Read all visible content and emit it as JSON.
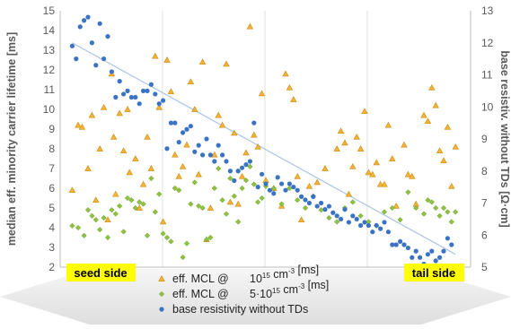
{
  "chart_data": {
    "type": "scatter",
    "title": "",
    "ylabel_left": "median eff. minority carrier lifetime [ms]",
    "ylabel_right": "base resistiv. without TDs [Ω·cm]",
    "ylim_left": [
      2,
      15
    ],
    "ylim_right": [
      5,
      13
    ],
    "yticks_left": [
      "2",
      "3",
      "4",
      "5",
      "6",
      "7",
      "8",
      "9",
      "10",
      "11",
      "12",
      "13",
      "14",
      "15"
    ],
    "yticks_right": [
      "5",
      "6",
      "7",
      "8",
      "9",
      "10",
      "11",
      "12",
      "13"
    ],
    "x_range": [
      0,
      100
    ],
    "x_label_left": "seed side",
    "x_label_right": "tail side",
    "grid": "vertical",
    "legend_position": "bottom",
    "legend": [
      {
        "prefix": "eff. MCL @",
        "rest": "10",
        "sup": "15",
        "after": " cm",
        "sup2": "-3",
        "tail": " [ms]"
      },
      {
        "prefix": "eff. MCL @",
        "rest": "5·10",
        "sup": "15",
        "after": " cm",
        "sup2": "-3",
        "tail": " [ms]"
      },
      {
        "prefix": "base resistivity without TDs",
        "rest": "",
        "sup": "",
        "after": "",
        "sup2": "",
        "tail": ""
      }
    ],
    "colors": {
      "series1": "#f5b335",
      "series2": "#8ec23f",
      "series3": "#3a72c4",
      "trend": "#aac4e6",
      "tag_bg": "#ffff00"
    },
    "series": [
      {
        "axis": "left",
        "marker": "triangle",
        "points": [
          [
            1,
            5.9
          ],
          [
            2.5,
            9.2
          ],
          [
            3.5,
            9.1
          ],
          [
            5,
            7.0
          ],
          [
            6,
            9.7
          ],
          [
            7,
            5.4
          ],
          [
            8,
            8.0
          ],
          [
            9,
            10.1
          ],
          [
            10,
            4.4
          ],
          [
            11,
            11.8
          ],
          [
            11.5,
            8.6
          ],
          [
            12,
            5.7
          ],
          [
            13,
            9.8
          ],
          [
            14,
            7.9
          ],
          [
            15,
            10.0
          ],
          [
            15.5,
            6.8
          ],
          [
            17,
            7.5
          ],
          [
            18,
            5.0
          ],
          [
            19,
            6.2
          ],
          [
            20,
            8.6
          ],
          [
            21,
            7.0
          ],
          [
            22,
            12.7
          ],
          [
            23,
            10.1
          ],
          [
            24,
            4.3
          ],
          [
            25,
            12.5
          ],
          [
            26,
            10.9
          ],
          [
            27,
            7.7
          ],
          [
            28,
            6.6
          ],
          [
            29,
            7.1
          ],
          [
            30,
            8.2
          ],
          [
            31,
            11.4
          ],
          [
            32,
            10.0
          ],
          [
            33,
            6.7
          ],
          [
            34,
            12.4
          ],
          [
            35,
            3.4
          ],
          [
            36,
            5.0
          ],
          [
            37,
            7.7
          ],
          [
            38,
            9.7
          ],
          [
            39,
            9.2
          ],
          [
            40,
            12.3
          ],
          [
            41,
            5.3
          ],
          [
            42,
            8.8
          ],
          [
            43,
            5.2
          ],
          [
            44,
            6.6
          ],
          [
            45,
            7.8
          ],
          [
            46,
            14.2
          ],
          [
            47,
            8.7
          ],
          [
            48,
            8.1
          ],
          [
            49,
            10.8
          ],
          [
            50,
            6.4
          ],
          [
            52,
            6.0
          ],
          [
            54,
            5.1
          ],
          [
            55,
            11.8
          ],
          [
            56,
            11.1
          ],
          [
            57,
            10.5
          ],
          [
            58,
            6.6
          ],
          [
            59,
            4.4
          ],
          [
            61,
            6.1
          ],
          [
            63,
            6.3
          ],
          [
            65,
            7.0
          ],
          [
            68,
            8.0
          ],
          [
            69,
            8.9
          ],
          [
            70,
            8.3
          ],
          [
            71,
            5.7
          ],
          [
            72,
            7.1
          ],
          [
            73,
            8.6
          ],
          [
            74,
            8.0
          ],
          [
            75,
            9.9
          ],
          [
            76,
            6.8
          ],
          [
            77,
            6.7
          ],
          [
            78,
            7.3
          ],
          [
            79,
            6.2
          ],
          [
            80,
            6.2
          ],
          [
            81,
            9.2
          ],
          [
            82,
            7.5
          ],
          [
            83,
            5.1
          ],
          [
            85,
            8.2
          ],
          [
            86,
            6.7
          ],
          [
            87,
            6.6
          ],
          [
            88,
            5.2
          ],
          [
            90,
            9.7
          ],
          [
            91,
            9.4
          ],
          [
            92,
            11.1
          ],
          [
            93,
            10.2
          ],
          [
            94,
            7.9
          ],
          [
            95,
            7.4
          ],
          [
            96,
            9.1
          ],
          [
            97,
            6.1
          ],
          [
            98,
            8.1
          ]
        ]
      },
      {
        "axis": "left",
        "marker": "diamond",
        "points": [
          [
            1,
            4.1
          ],
          [
            2.5,
            4.0
          ],
          [
            4,
            3.6
          ],
          [
            5,
            4.9
          ],
          [
            6,
            4.6
          ],
          [
            7,
            4.4
          ],
          [
            8,
            3.9
          ],
          [
            9,
            4.5
          ],
          [
            10,
            3.5
          ],
          [
            11,
            4.9
          ],
          [
            12,
            4.7
          ],
          [
            13,
            5.1
          ],
          [
            14,
            3.8
          ],
          [
            15,
            5.5
          ],
          [
            16,
            5.4
          ],
          [
            17,
            5.0
          ],
          [
            18,
            5.3
          ],
          [
            19,
            5.2
          ],
          [
            20,
            3.6
          ],
          [
            21,
            6.5
          ],
          [
            22,
            4.8
          ],
          [
            23,
            5.7
          ],
          [
            24,
            3.7
          ],
          [
            25,
            3.5
          ],
          [
            26,
            3.3
          ],
          [
            27,
            6.0
          ],
          [
            28,
            5.9
          ],
          [
            29,
            2.5
          ],
          [
            30,
            3.2
          ],
          [
            31,
            5.2
          ],
          [
            32,
            6.3
          ],
          [
            33,
            5.1
          ],
          [
            34,
            5.0
          ],
          [
            35,
            3.4
          ],
          [
            36,
            3.5
          ],
          [
            37,
            6.0
          ],
          [
            38,
            7.0
          ],
          [
            39,
            5.4
          ],
          [
            40,
            4.7
          ],
          [
            41,
            6.5
          ],
          [
            42,
            5.6
          ],
          [
            43,
            4.3
          ],
          [
            44,
            6.0
          ],
          [
            45,
            6.4
          ],
          [
            46,
            7.1
          ],
          [
            47,
            6.2
          ],
          [
            48,
            5.3
          ],
          [
            49,
            5.5
          ],
          [
            50,
            6.1
          ],
          [
            52,
            6.0
          ],
          [
            54,
            5.2
          ],
          [
            56,
            6.0
          ],
          [
            58,
            5.4
          ],
          [
            60,
            5.0
          ],
          [
            62,
            5.6
          ],
          [
            64,
            4.9
          ],
          [
            66,
            4.5
          ],
          [
            68,
            4.3
          ],
          [
            70,
            5.0
          ],
          [
            72,
            5.3
          ],
          [
            74,
            4.6
          ],
          [
            76,
            4.3
          ],
          [
            78,
            4.1
          ],
          [
            80,
            4.8
          ],
          [
            82,
            5.0
          ],
          [
            84,
            4.4
          ],
          [
            86,
            5.8
          ],
          [
            88,
            5.0
          ],
          [
            90,
            4.7
          ],
          [
            91,
            5.4
          ],
          [
            92,
            5.3
          ],
          [
            93,
            5.0
          ],
          [
            94,
            4.6
          ],
          [
            95,
            5.0
          ],
          [
            96,
            4.8
          ],
          [
            97,
            4.3
          ],
          [
            98,
            4.8
          ]
        ]
      },
      {
        "axis": "right",
        "marker": "dot",
        "points": [
          [
            1,
            11.9
          ],
          [
            2,
            11.5
          ],
          [
            3,
            12.5
          ],
          [
            4,
            12.7
          ],
          [
            5,
            12.8
          ],
          [
            6,
            12.0
          ],
          [
            7,
            11.3
          ],
          [
            8,
            12.6
          ],
          [
            9,
            11.5
          ],
          [
            10,
            12.2
          ],
          [
            11,
            11.1
          ],
          [
            12,
            10.3
          ],
          [
            13,
            10.8
          ],
          [
            14,
            10.4
          ],
          [
            15,
            10.5
          ],
          [
            16,
            10.3
          ],
          [
            17,
            10.3
          ],
          [
            18,
            10.1
          ],
          [
            19,
            10.5
          ],
          [
            20,
            10.5
          ],
          [
            21,
            10.7
          ],
          [
            22,
            10.4
          ],
          [
            23,
            10.1
          ],
          [
            24,
            10.2
          ],
          [
            25,
            8.7
          ],
          [
            26,
            9.5
          ],
          [
            27,
            9.5
          ],
          [
            28,
            8.9
          ],
          [
            29,
            9.2
          ],
          [
            30,
            9.3
          ],
          [
            31,
            9.4
          ],
          [
            32,
            8.6
          ],
          [
            33,
            8.8
          ],
          [
            34,
            8.5
          ],
          [
            35,
            9.0
          ],
          [
            36,
            8.5
          ],
          [
            37,
            8.3
          ],
          [
            38,
            8.8
          ],
          [
            39,
            8.5
          ],
          [
            40,
            8.3
          ],
          [
            41,
            8.0
          ],
          [
            42,
            7.7
          ],
          [
            43,
            8.0
          ],
          [
            44,
            8.1
          ],
          [
            45,
            8.2
          ],
          [
            46,
            8.3
          ],
          [
            47,
            9.5
          ],
          [
            48,
            7.5
          ],
          [
            49,
            7.9
          ],
          [
            50,
            7.6
          ],
          [
            51,
            7.4
          ],
          [
            52,
            7.3
          ],
          [
            53,
            7.8
          ],
          [
            54,
            7.6
          ],
          [
            55,
            7.4
          ],
          [
            56,
            7.6
          ],
          [
            57,
            7.5
          ],
          [
            58,
            7.4
          ],
          [
            59,
            7.2
          ],
          [
            60,
            7.1
          ],
          [
            61,
            7.0
          ],
          [
            62,
            7.2
          ],
          [
            63,
            6.9
          ],
          [
            64,
            7.0
          ],
          [
            65,
            6.8
          ],
          [
            66,
            6.9
          ],
          [
            67,
            6.7
          ],
          [
            68,
            6.6
          ],
          [
            69,
            6.5
          ],
          [
            70,
            6.8
          ],
          [
            71,
            6.4
          ],
          [
            72,
            6.6
          ],
          [
            73,
            6.5
          ],
          [
            74,
            6.3
          ],
          [
            75,
            6.4
          ],
          [
            76,
            6.3
          ],
          [
            77,
            6.1
          ],
          [
            78,
            6.3
          ],
          [
            79,
            6.2
          ],
          [
            80,
            6.4
          ],
          [
            81,
            6.1
          ],
          [
            82,
            5.7
          ],
          [
            83,
            5.7
          ],
          [
            84,
            5.8
          ],
          [
            85,
            5.7
          ],
          [
            86,
            5.6
          ],
          [
            87,
            5.3
          ],
          [
            88,
            5.5
          ],
          [
            89,
            5.3
          ],
          [
            90,
            5.1
          ],
          [
            91,
            5.4
          ],
          [
            92,
            5.5
          ],
          [
            93,
            5.2
          ],
          [
            94,
            5.3
          ],
          [
            95,
            5.5
          ],
          [
            96,
            5.9
          ],
          [
            97,
            5.7
          ]
        ]
      }
    ],
    "trendline": {
      "axis": "right",
      "from": [
        1,
        12.0
      ],
      "to": [
        98,
        5.4
      ]
    }
  }
}
